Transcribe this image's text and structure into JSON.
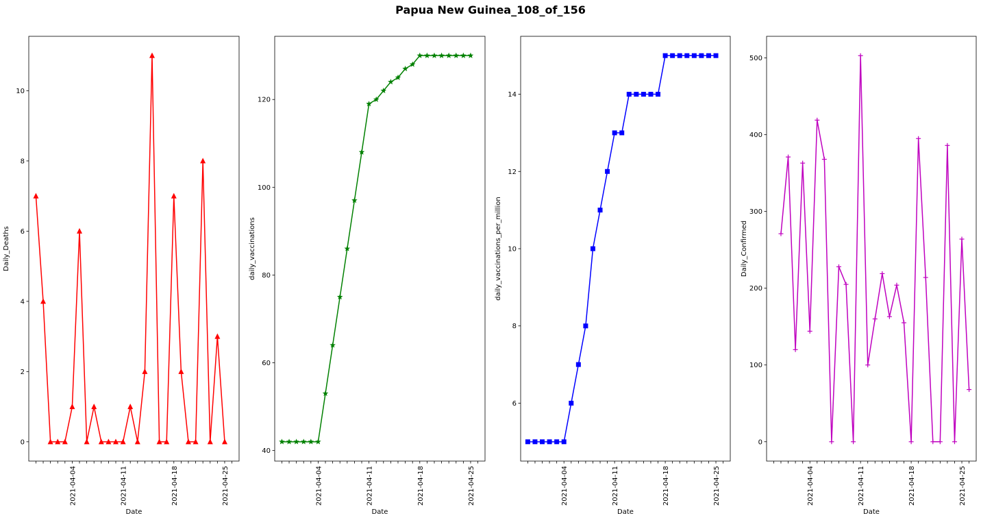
{
  "figure": {
    "title": "Papua New Guinea_108_of_156"
  },
  "chart_data": [
    {
      "type": "line",
      "id": "deaths",
      "color": "#ff0000",
      "marker": "triangle",
      "xlabel": "Date",
      "ylabel": "Daily_Deaths",
      "ylim": [
        -0.55,
        11.55
      ],
      "yticks": [
        0,
        2,
        4,
        6,
        8,
        10
      ],
      "x": [
        "2021-03-30",
        "2021-03-31",
        "2021-04-01",
        "2021-04-02",
        "2021-04-03",
        "2021-04-04",
        "2021-04-05",
        "2021-04-06",
        "2021-04-07",
        "2021-04-08",
        "2021-04-09",
        "2021-04-10",
        "2021-04-11",
        "2021-04-12",
        "2021-04-13",
        "2021-04-14",
        "2021-04-15",
        "2021-04-16",
        "2021-04-17",
        "2021-04-18",
        "2021-04-19",
        "2021-04-20",
        "2021-04-21",
        "2021-04-22",
        "2021-04-23",
        "2021-04-24",
        "2021-04-25",
        "2021-04-26"
      ],
      "values": [
        7,
        4,
        0,
        0,
        0,
        1,
        6,
        0,
        1,
        0,
        0,
        0,
        0,
        1,
        0,
        2,
        11,
        0,
        0,
        7,
        2,
        0,
        0,
        8,
        0,
        3,
        0,
        null
      ],
      "xtick_labels": [
        "2021-04-04",
        "2021-04-11",
        "2021-04-18",
        "2021-04-25"
      ],
      "grid": false
    },
    {
      "type": "line",
      "id": "vaccinations",
      "color": "#008000",
      "marker": "star",
      "xlabel": "Date",
      "ylabel": "daily_vaccinations",
      "ylim": [
        37.6,
        134.4
      ],
      "yticks": [
        40,
        60,
        80,
        100,
        120
      ],
      "x": [
        "2021-03-30",
        "2021-03-31",
        "2021-04-01",
        "2021-04-02",
        "2021-04-03",
        "2021-04-04",
        "2021-04-05",
        "2021-04-06",
        "2021-04-07",
        "2021-04-08",
        "2021-04-09",
        "2021-04-10",
        "2021-04-11",
        "2021-04-12",
        "2021-04-13",
        "2021-04-14",
        "2021-04-15",
        "2021-04-16",
        "2021-04-17",
        "2021-04-18",
        "2021-04-19",
        "2021-04-20",
        "2021-04-21",
        "2021-04-22",
        "2021-04-23",
        "2021-04-24",
        "2021-04-25",
        "2021-04-26"
      ],
      "values": [
        42,
        42,
        42,
        42,
        42,
        42,
        53,
        64,
        75,
        86,
        97,
        108,
        119,
        120,
        122,
        124,
        125,
        127,
        128,
        130,
        130,
        130,
        130,
        130,
        130,
        130,
        130,
        null
      ],
      "xtick_labels": [
        "2021-04-04",
        "2021-04-11",
        "2021-04-18",
        "2021-04-25"
      ],
      "grid": false
    },
    {
      "type": "line",
      "id": "vaccinations_per_million",
      "color": "#0000ff",
      "marker": "square",
      "xlabel": "Date",
      "ylabel": "daily_vaccinations_per_million",
      "ylim": [
        4.5,
        15.5
      ],
      "yticks": [
        6,
        8,
        10,
        12,
        14
      ],
      "x": [
        "2021-03-30",
        "2021-03-31",
        "2021-04-01",
        "2021-04-02",
        "2021-04-03",
        "2021-04-04",
        "2021-04-05",
        "2021-04-06",
        "2021-04-07",
        "2021-04-08",
        "2021-04-09",
        "2021-04-10",
        "2021-04-11",
        "2021-04-12",
        "2021-04-13",
        "2021-04-14",
        "2021-04-15",
        "2021-04-16",
        "2021-04-17",
        "2021-04-18",
        "2021-04-19",
        "2021-04-20",
        "2021-04-21",
        "2021-04-22",
        "2021-04-23",
        "2021-04-24",
        "2021-04-25",
        "2021-04-26"
      ],
      "values": [
        5,
        5,
        5,
        5,
        5,
        5,
        6,
        7,
        8,
        10,
        11,
        12,
        13,
        13,
        14,
        14,
        14,
        14,
        14,
        15,
        15,
        15,
        15,
        15,
        15,
        15,
        15,
        null
      ],
      "xtick_labels": [
        "2021-04-04",
        "2021-04-11",
        "2021-04-18",
        "2021-04-25"
      ],
      "grid": false
    },
    {
      "type": "line",
      "id": "confirmed",
      "color": "#bf00bf",
      "marker": "plus",
      "xlabel": "Date",
      "ylabel": "Daily_Confirmed",
      "ylim": [
        -25.2,
        528.2
      ],
      "yticks": [
        0,
        100,
        200,
        300,
        400,
        500
      ],
      "x": [
        "2021-03-30",
        "2021-03-31",
        "2021-04-01",
        "2021-04-02",
        "2021-04-03",
        "2021-04-04",
        "2021-04-05",
        "2021-04-06",
        "2021-04-07",
        "2021-04-08",
        "2021-04-09",
        "2021-04-10",
        "2021-04-11",
        "2021-04-12",
        "2021-04-13",
        "2021-04-14",
        "2021-04-15",
        "2021-04-16",
        "2021-04-17",
        "2021-04-18",
        "2021-04-19",
        "2021-04-20",
        "2021-04-21",
        "2021-04-22",
        "2021-04-23",
        "2021-04-24",
        "2021-04-25",
        "2021-04-26"
      ],
      "values": [
        null,
        271,
        371,
        120,
        363,
        144,
        419,
        368,
        0,
        228,
        205,
        0,
        503,
        100,
        160,
        219,
        163,
        204,
        155,
        0,
        395,
        214,
        0,
        0,
        386,
        0,
        264,
        68
      ],
      "xtick_labels": [
        "2021-04-04",
        "2021-04-11",
        "2021-04-18",
        "2021-04-25"
      ],
      "grid": false
    }
  ]
}
